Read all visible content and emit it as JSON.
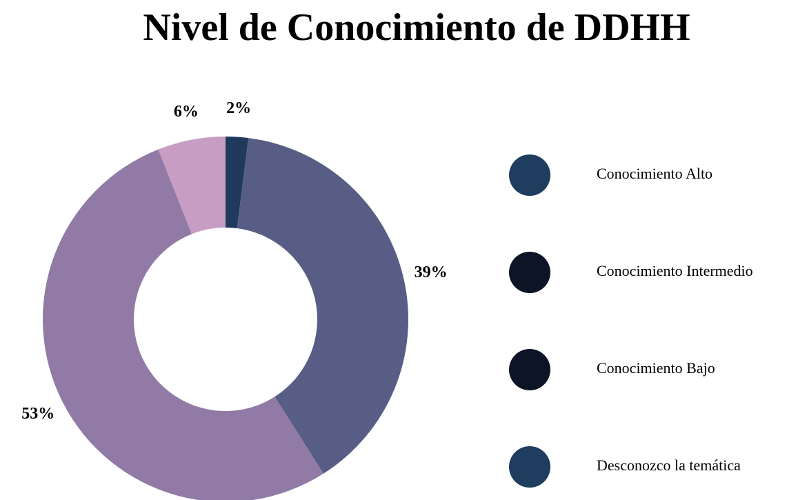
{
  "chart_data": {
    "type": "donut",
    "title": "Nivel de Conocimiento de DDHH",
    "categories": [
      "Conocimiento Alto",
      "Conocimiento Intermedio",
      "Conocimiento Bajo",
      "Desconozco la temática"
    ],
    "values": [
      2,
      39,
      53,
      6
    ],
    "value_labels": [
      "2%",
      "39%",
      "53%",
      "6%"
    ],
    "colors": [
      "#1f3a5d",
      "#585d85",
      "#917ba6",
      "#c89dc3"
    ],
    "legend_colors": [
      "#1f3d5e",
      "#0d1426",
      "#0d1426",
      "#1f3d5e"
    ],
    "legend": "right"
  }
}
